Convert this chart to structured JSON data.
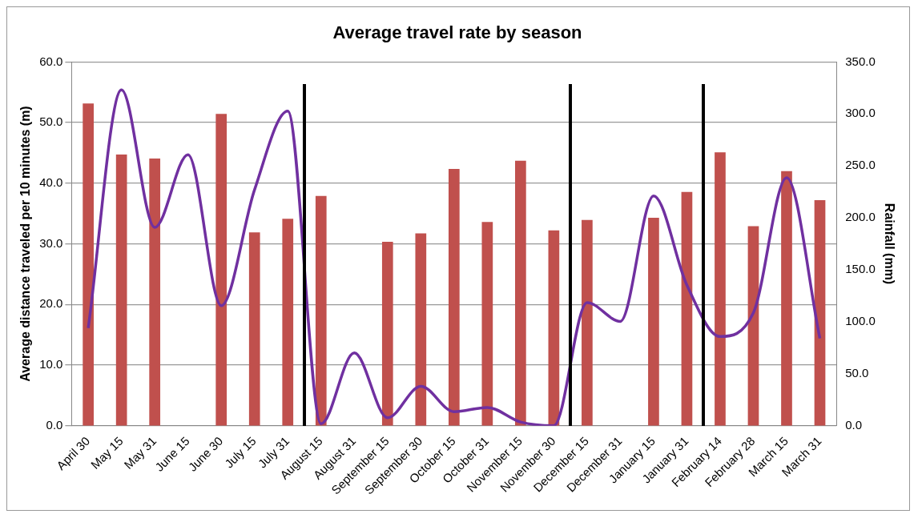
{
  "chart_data": {
    "type": "bar",
    "title": "Average travel rate by season",
    "ylabel": "Average distance traveled per 10 minutes (m)",
    "y2label": "Rainfall (mm)",
    "categories": [
      "April 30",
      "May 15",
      "May 31",
      "June 15",
      "June 30",
      "July 15",
      "July 31",
      "August 15",
      "August 31",
      "September 15",
      "September 30",
      "October 15",
      "October 31",
      "November 15",
      "November 30",
      "December 15",
      "December 31",
      "January 15",
      "January 31",
      "February 14",
      "February 28",
      "March 15",
      "March 31"
    ],
    "series": [
      {
        "axis": "y2",
        "color": "#c0504d",
        "values": [
          310,
          261,
          257,
          0,
          300,
          186,
          199,
          221,
          0,
          177,
          185,
          247,
          196,
          255,
          188,
          198,
          0,
          200,
          225,
          263,
          192,
          245,
          217
        ]
      },
      {
        "type": "line",
        "color": "#7030a0",
        "values": [
          16.1,
          55.4,
          32.7,
          44.7,
          19.8,
          38.9,
          51.9,
          0.3,
          12.0,
          1.3,
          6.5,
          2.3,
          3.0,
          0.6,
          0.0,
          20.3,
          17.2,
          37.9,
          23.2,
          14.7,
          18.6,
          40.9,
          14.4
        ]
      }
    ],
    "ylim": [
      0,
      60
    ],
    "yticks": [
      {
        "value": 0,
        "label": "0.0"
      },
      {
        "value": 10,
        "label": "10.0"
      },
      {
        "value": 20,
        "label": "20.0"
      },
      {
        "value": 30,
        "label": "30.0"
      },
      {
        "value": 40,
        "label": "40.0"
      },
      {
        "value": 50,
        "label": "50.0"
      },
      {
        "value": 60,
        "label": "60.0"
      }
    ],
    "y2lim": [
      0,
      350
    ],
    "y2ticks": [
      {
        "value": 0,
        "label": "0.0"
      },
      {
        "value": 50,
        "label": "50.0"
      },
      {
        "value": 100,
        "label": "100.0"
      },
      {
        "value": 150,
        "label": "150.0"
      },
      {
        "value": 200,
        "label": "200.0"
      },
      {
        "value": 250,
        "label": "250.0"
      },
      {
        "value": 300,
        "label": "300.0"
      },
      {
        "value": 350,
        "label": "350.0"
      }
    ],
    "grid": "y",
    "legend": false,
    "marker": "none",
    "line_style": "solid"
  }
}
